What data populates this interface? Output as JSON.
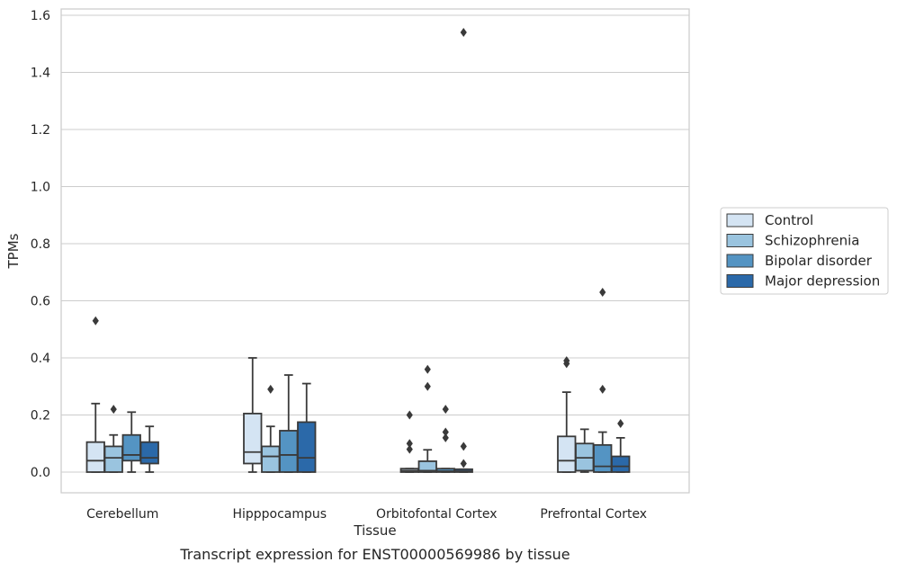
{
  "caption": "Transcript expression for ENST00000569986 by tissue",
  "chart_data": {
    "type": "box",
    "xlabel": "Tissue",
    "ylabel": "TPMs",
    "ylim": [
      -0.075,
      1.62
    ],
    "yticks": [
      "0.0",
      "0.2",
      "0.4",
      "0.6",
      "0.8",
      "1.0",
      "1.2",
      "1.4",
      "1.6"
    ],
    "grid": "horizontal",
    "legend_position": "right",
    "categories": [
      "Cerebellum",
      "Hipppocampus",
      "Orbitofontal Cortex",
      "Prefrontal Cortex"
    ],
    "series": [
      {
        "name": "Control",
        "color": "#d4e4f3",
        "boxes": [
          {
            "q1": 0.0,
            "median": 0.04,
            "q3": 0.105,
            "whislo": 0.0,
            "whishi": 0.24,
            "fliers": [
              0.53
            ]
          },
          {
            "q1": 0.03,
            "median": 0.07,
            "q3": 0.205,
            "whislo": 0.0,
            "whishi": 0.4,
            "fliers": []
          },
          {
            "q1": 0.0,
            "median": 0.005,
            "q3": 0.012,
            "whislo": 0.0,
            "whishi": 0.012,
            "fliers": [
              0.08,
              0.1,
              0.2
            ]
          },
          {
            "q1": 0.0,
            "median": 0.04,
            "q3": 0.125,
            "whislo": 0.0,
            "whishi": 0.28,
            "fliers": [
              0.38,
              0.39
            ]
          }
        ]
      },
      {
        "name": "Schizophrenia",
        "color": "#9ac4df",
        "boxes": [
          {
            "q1": 0.0,
            "median": 0.05,
            "q3": 0.09,
            "whislo": 0.0,
            "whishi": 0.13,
            "fliers": [
              0.22
            ]
          },
          {
            "q1": 0.0,
            "median": 0.055,
            "q3": 0.09,
            "whislo": 0.0,
            "whishi": 0.16,
            "fliers": [
              0.29
            ]
          },
          {
            "q1": 0.0,
            "median": 0.005,
            "q3": 0.038,
            "whislo": 0.0,
            "whishi": 0.078,
            "fliers": [
              0.3,
              0.36
            ]
          },
          {
            "q1": 0.005,
            "median": 0.05,
            "q3": 0.1,
            "whislo": 0.0,
            "whishi": 0.15,
            "fliers": []
          }
        ]
      },
      {
        "name": "Bipolar disorder",
        "color": "#5494c3",
        "boxes": [
          {
            "q1": 0.04,
            "median": 0.06,
            "q3": 0.13,
            "whislo": 0.0,
            "whishi": 0.21,
            "fliers": []
          },
          {
            "q1": 0.0,
            "median": 0.06,
            "q3": 0.145,
            "whislo": 0.0,
            "whishi": 0.34,
            "fliers": []
          },
          {
            "q1": 0.0,
            "median": 0.003,
            "q3": 0.012,
            "whislo": 0.0,
            "whishi": 0.012,
            "fliers": [
              0.12,
              0.14,
              0.22
            ]
          },
          {
            "q1": 0.0,
            "median": 0.02,
            "q3": 0.095,
            "whislo": 0.0,
            "whishi": 0.14,
            "fliers": [
              0.29,
              0.63
            ]
          }
        ]
      },
      {
        "name": "Major depression",
        "color": "#2b69a9",
        "boxes": [
          {
            "q1": 0.03,
            "median": 0.05,
            "q3": 0.105,
            "whislo": 0.0,
            "whishi": 0.16,
            "fliers": []
          },
          {
            "q1": 0.0,
            "median": 0.05,
            "q3": 0.175,
            "whislo": 0.0,
            "whishi": 0.31,
            "fliers": []
          },
          {
            "q1": 0.0,
            "median": 0.003,
            "q3": 0.01,
            "whislo": 0.0,
            "whishi": 0.01,
            "fliers": [
              0.03,
              0.09,
              1.54
            ]
          },
          {
            "q1": 0.0,
            "median": 0.02,
            "q3": 0.055,
            "whislo": 0.0,
            "whishi": 0.12,
            "fliers": [
              0.17
            ]
          }
        ]
      }
    ]
  }
}
